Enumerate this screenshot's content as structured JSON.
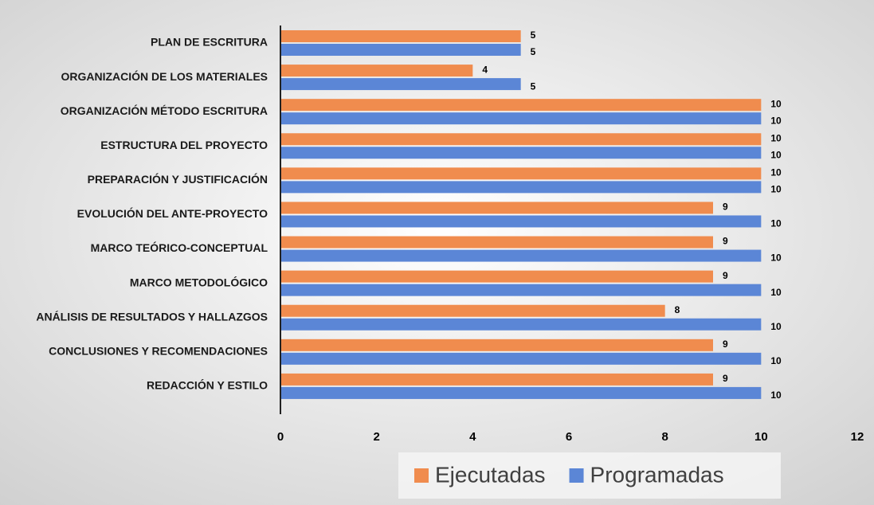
{
  "chart_data": {
    "type": "hbar",
    "categories": [
      "PLAN DE ESCRITURA",
      "ORGANIZACIÓN DE LOS MATERIALES",
      "ORGANIZACIÓN MÉTODO ESCRITURA",
      "ESTRUCTURA DEL PROYECTO",
      "PREPARACIÓN Y JUSTIFICACIÓN",
      "EVOLUCIÓN DEL ANTE-PROYECTO",
      "MARCO TEÓRICO-CONCEPTUAL",
      "MARCO METODOLÓGICO",
      "ANÁLISIS DE RESULTADOS Y HALLAZGOS",
      "CONCLUSIONES Y RECOMENDACIONES",
      "REDACCIÓN Y ESTILO"
    ],
    "series": [
      {
        "name": "Ejecutadas",
        "color": "#f08c4e",
        "values": [
          5,
          4,
          10,
          10,
          10,
          9,
          9,
          9,
          8,
          9,
          9
        ]
      },
      {
        "name": "Programadas",
        "color": "#5b86d6",
        "values": [
          5,
          5,
          10,
          10,
          10,
          10,
          10,
          10,
          10,
          10,
          10
        ]
      }
    ],
    "xlim": [
      0,
      12
    ],
    "xticks": [
      0,
      2,
      4,
      6,
      8,
      10,
      12
    ],
    "legend": "bottom",
    "grid": false
  }
}
